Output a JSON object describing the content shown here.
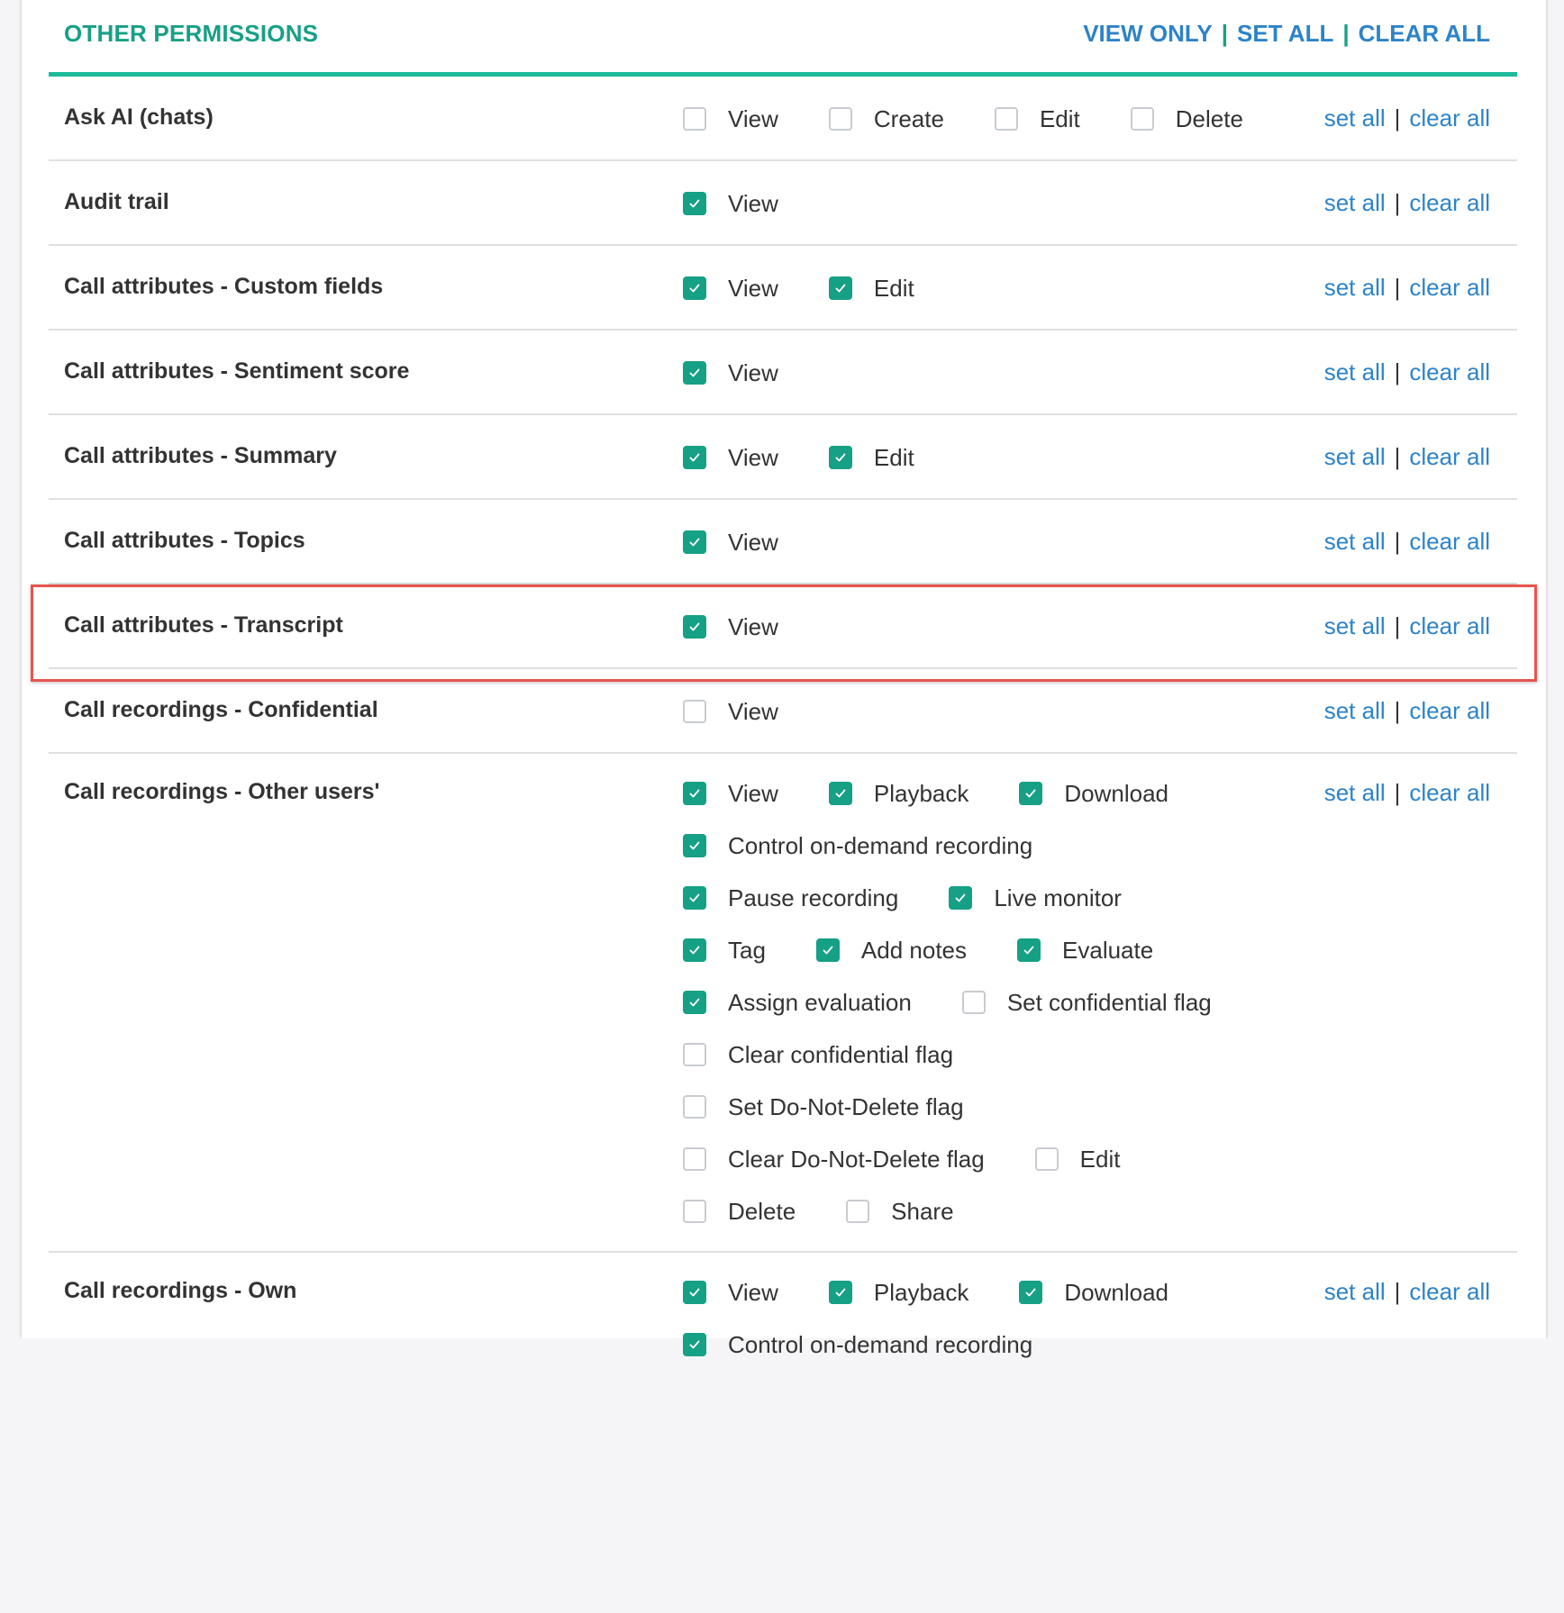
{
  "header": {
    "title": "OTHER PERMISSIONS",
    "view_only": "VIEW ONLY",
    "set_all": "SET ALL",
    "clear_all": "CLEAR ALL",
    "separator": "|"
  },
  "row_links": {
    "set_all": "set all",
    "clear_all": "clear all",
    "separator": "|"
  },
  "colors": {
    "accent": "#16a085",
    "link": "#2d83c8",
    "highlight": "#e8554e"
  },
  "highlighted_row": "Call attributes - Transcript",
  "rows": [
    {
      "name": "Ask AI (chats)",
      "lines": [
        [
          {
            "label": "View",
            "checked": false
          },
          {
            "label": "Create",
            "checked": false
          },
          {
            "label": "Edit",
            "checked": false
          },
          {
            "label": "Delete",
            "checked": false
          }
        ]
      ]
    },
    {
      "name": "Audit trail",
      "lines": [
        [
          {
            "label": "View",
            "checked": true
          }
        ]
      ]
    },
    {
      "name": "Call attributes - Custom fields",
      "lines": [
        [
          {
            "label": "View",
            "checked": true
          },
          {
            "label": "Edit",
            "checked": true
          }
        ]
      ]
    },
    {
      "name": "Call attributes - Sentiment score",
      "lines": [
        [
          {
            "label": "View",
            "checked": true
          }
        ]
      ]
    },
    {
      "name": "Call attributes - Summary",
      "lines": [
        [
          {
            "label": "View",
            "checked": true
          },
          {
            "label": "Edit",
            "checked": true
          }
        ]
      ]
    },
    {
      "name": "Call attributes - Topics",
      "lines": [
        [
          {
            "label": "View",
            "checked": true
          }
        ]
      ]
    },
    {
      "name": "Call attributes - Transcript",
      "lines": [
        [
          {
            "label": "View",
            "checked": true
          }
        ]
      ]
    },
    {
      "name": "Call recordings - Confidential",
      "lines": [
        [
          {
            "label": "View",
            "checked": false
          }
        ]
      ]
    },
    {
      "name": "Call recordings - Other users'",
      "lines": [
        [
          {
            "label": "View",
            "checked": true
          },
          {
            "label": "Playback",
            "checked": true
          },
          {
            "label": "Download",
            "checked": true
          }
        ],
        [
          {
            "label": "Control on-demand recording",
            "checked": true
          }
        ],
        [
          {
            "label": "Pause recording",
            "checked": true
          },
          {
            "label": "Live monitor",
            "checked": true
          }
        ],
        [
          {
            "label": "Tag",
            "checked": true
          },
          {
            "label": "Add notes",
            "checked": true
          },
          {
            "label": "Evaluate",
            "checked": true
          }
        ],
        [
          {
            "label": "Assign evaluation",
            "checked": true
          },
          {
            "label": "Set confidential flag",
            "checked": false
          }
        ],
        [
          {
            "label": "Clear confidential flag",
            "checked": false
          }
        ],
        [
          {
            "label": "Set Do-Not-Delete flag",
            "checked": false
          }
        ],
        [
          {
            "label": "Clear Do-Not-Delete flag",
            "checked": false
          },
          {
            "label": "Edit",
            "checked": false
          }
        ],
        [
          {
            "label": "Delete",
            "checked": false
          },
          {
            "label": "Share",
            "checked": false
          }
        ]
      ]
    },
    {
      "name": "Call recordings - Own",
      "lines": [
        [
          {
            "label": "View",
            "checked": true
          },
          {
            "label": "Playback",
            "checked": true
          },
          {
            "label": "Download",
            "checked": true
          }
        ],
        [
          {
            "label": "Control on-demand recording",
            "checked": true
          }
        ]
      ]
    }
  ]
}
